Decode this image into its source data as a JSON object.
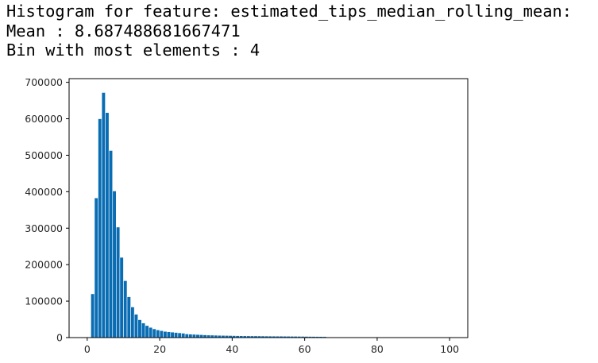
{
  "output": {
    "heading": "Histogram for feature: estimated_tips_median_rolling_mean:",
    "mean_line": "Mean : 8.687488681667471",
    "bin_line": "Bin with most elements : 4"
  },
  "colors": {
    "bar": "#0a6db4",
    "axis": "#000000",
    "text": "#262626",
    "background": "#ffffff"
  },
  "chart_data": {
    "type": "bar",
    "title": "",
    "xlabel": "",
    "ylabel": "",
    "xlim": [
      -5,
      105
    ],
    "ylim": [
      0,
      710000
    ],
    "xticks": [
      0,
      20,
      40,
      60,
      80,
      100
    ],
    "xtick_labels": [
      "0",
      "20",
      "40",
      "60",
      "80",
      "100"
    ],
    "yticks": [
      0,
      100000,
      200000,
      300000,
      400000,
      500000,
      600000,
      700000
    ],
    "ytick_labels": [
      "0",
      "100000",
      "200000",
      "300000",
      "400000",
      "500000",
      "600000",
      "700000"
    ],
    "grid": false,
    "legend": "none",
    "bin_width": 1,
    "bin_starts": [
      0,
      1,
      2,
      3,
      4,
      5,
      6,
      7,
      8,
      9,
      10,
      11,
      12,
      13,
      14,
      15,
      16,
      17,
      18,
      19,
      20,
      21,
      22,
      23,
      24,
      25,
      26,
      27,
      28,
      29,
      30,
      31,
      32,
      33,
      34,
      35,
      36,
      37,
      38,
      39,
      40,
      41,
      42,
      43,
      44,
      45,
      46,
      47,
      48,
      49,
      50,
      51,
      52,
      53,
      54,
      55,
      56,
      57,
      58,
      59,
      60,
      61,
      62,
      63,
      64,
      65
    ],
    "values": [
      0,
      120000,
      383000,
      600000,
      672000,
      617000,
      513000,
      402000,
      303000,
      220000,
      156000,
      112000,
      84000,
      64000,
      49000,
      40000,
      33000,
      28000,
      24000,
      21000,
      19000,
      17000,
      16000,
      15000,
      14000,
      13000,
      12000,
      10000,
      9500,
      9000,
      8500,
      8000,
      7500,
      7000,
      6800,
      6500,
      6200,
      6000,
      5800,
      5600,
      5400,
      5200,
      5000,
      4900,
      4800,
      4700,
      4600,
      4500,
      4400,
      4300,
      4200,
      4100,
      4000,
      3900,
      3800,
      3700,
      3600,
      3500,
      3400,
      3300,
      3200,
      3100,
      3000,
      2900,
      2800,
      2700
    ]
  }
}
